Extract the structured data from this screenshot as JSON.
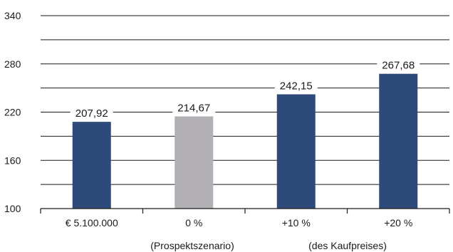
{
  "chart_data": {
    "type": "bar",
    "title": "",
    "xlabel": "",
    "ylabel": "",
    "ylim": [
      100,
      340
    ],
    "yticks": [
      100,
      160,
      220,
      280,
      340
    ],
    "minor_gridlines": [
      130,
      190,
      250,
      310
    ],
    "grid": true,
    "categories": [
      "€ 5.100.000",
      "0 %",
      "+10 %",
      "+20 %"
    ],
    "values": [
      207.92,
      214.67,
      242.15,
      267.68
    ],
    "value_labels": [
      "207,92",
      "214,67",
      "242,15",
      "267,68"
    ],
    "bar_colors": [
      "#2e4a7b",
      "#b3b0b5",
      "#2e4a7b",
      "#2e4a7b"
    ],
    "annotations": [
      "(Prospektszenario)",
      "(des Kaufpreises)"
    ]
  },
  "colors": {
    "gridline": "#1a1a1a",
    "text": "#1a1a1a",
    "background": "#ffffff"
  }
}
